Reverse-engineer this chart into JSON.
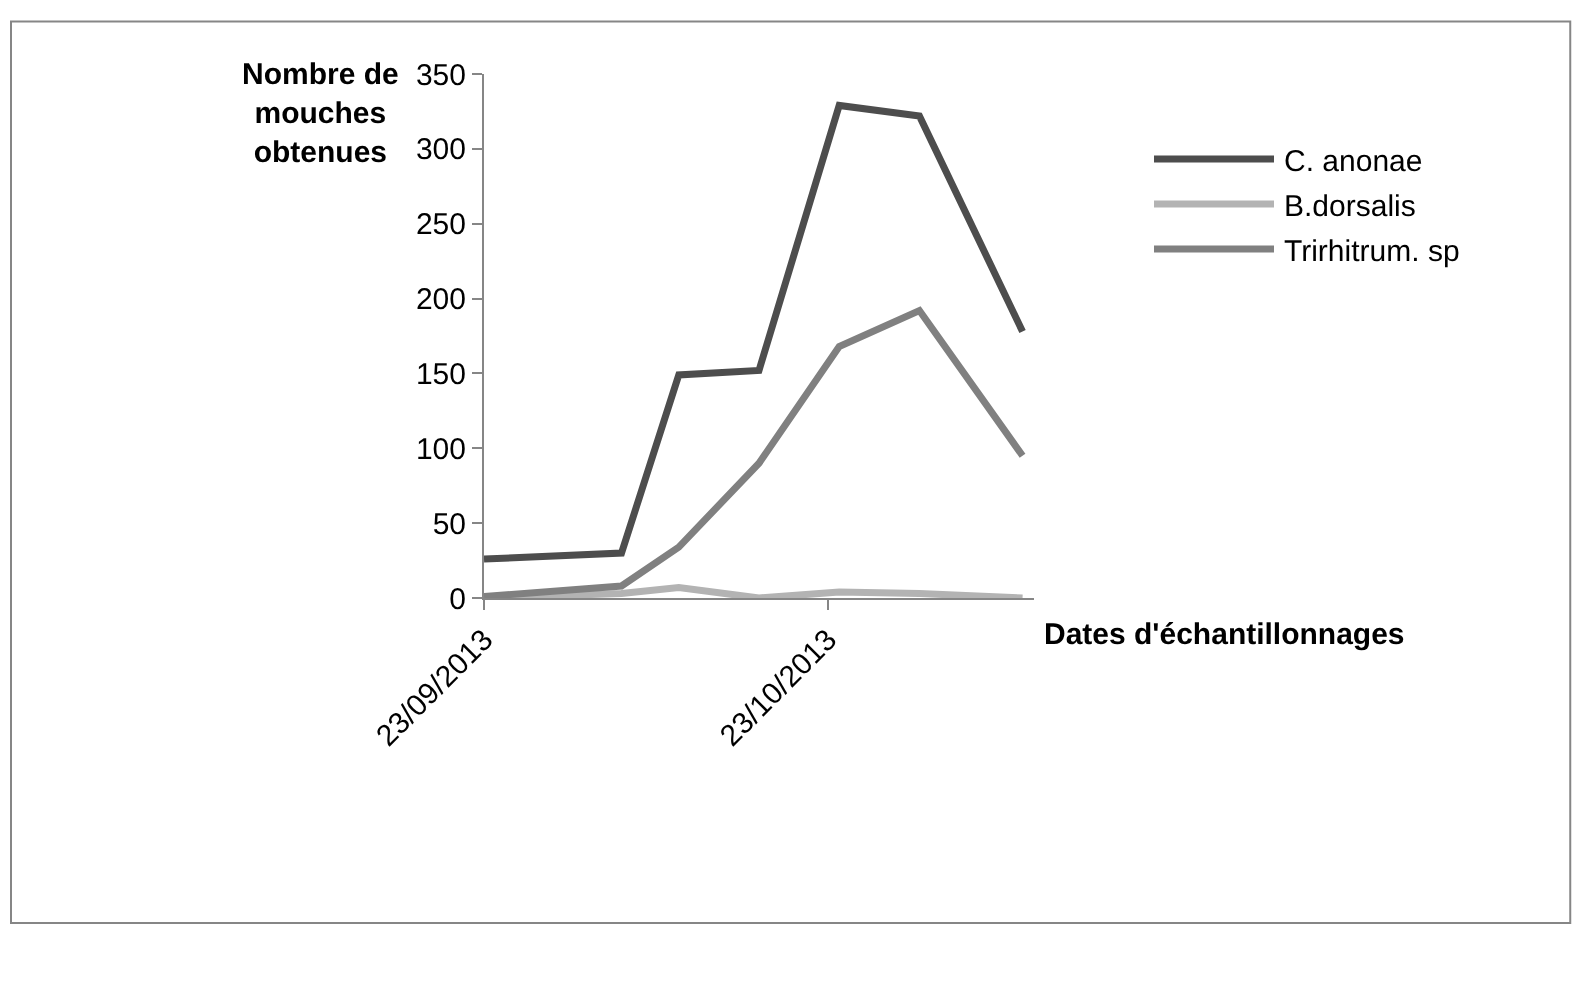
{
  "chart_data": {
    "type": "line",
    "xlabel": "Dates d'échantillonnages",
    "ylabel": "Nombre de\nmouches\nobtenues",
    "x": [
      "2013-09-23",
      "2013-10-05",
      "2013-10-10",
      "2013-10-17",
      "2013-10-24",
      "2013-10-31",
      "2013-11-09"
    ],
    "series": [
      {
        "name": "C. anonae",
        "color": "#4d4d4d",
        "values": [
          26,
          30,
          149,
          152,
          329,
          322,
          178
        ]
      },
      {
        "name": "B.dorsalis",
        "color": "#b3b3b3",
        "values": [
          0,
          3,
          7,
          0,
          4,
          3,
          0
        ]
      },
      {
        "name": "Trirhitrum. sp",
        "color": "#808080",
        "values": [
          1,
          8,
          34,
          90,
          168,
          192,
          95
        ]
      }
    ],
    "xlim": [
      "2013-09-23",
      "2013-11-10"
    ],
    "xticks": [
      {
        "value": "2013-09-23",
        "label": "23/09/2013"
      },
      {
        "value": "2013-10-23",
        "label": "23/10/2013"
      }
    ],
    "ylim": [
      0,
      350
    ],
    "yticks": [
      0,
      50,
      100,
      150,
      200,
      250,
      300,
      350
    ],
    "legend": "right",
    "marker": "none",
    "line_style": "solid"
  }
}
